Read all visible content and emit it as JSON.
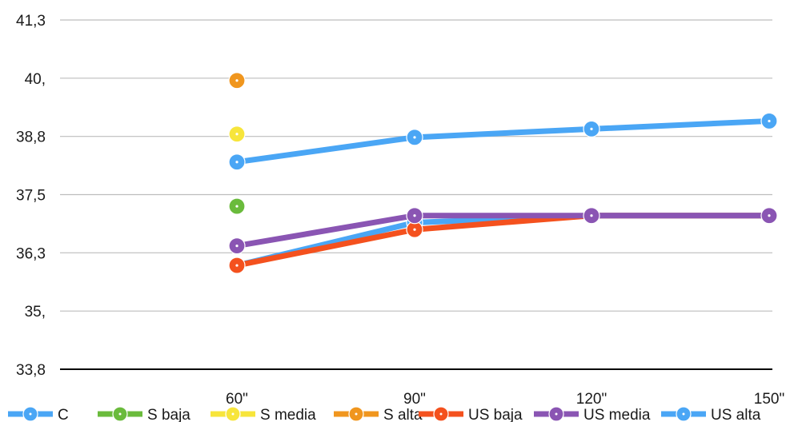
{
  "chart_data": {
    "type": "line",
    "categories": [
      "60\"",
      "90\"",
      "120\"",
      "150\""
    ],
    "yticks": [
      "33,8",
      "35,",
      "36,3",
      "37,5",
      "38,8",
      "40,",
      "41,3"
    ],
    "ylim": [
      33.8,
      41.3
    ],
    "grid": true,
    "legend_position": "bottom",
    "series": [
      {
        "name": "C",
        "color": "#4aa6f5",
        "values": [
          36.03,
          36.95,
          37.1,
          37.1
        ]
      },
      {
        "name": "S baja",
        "color": "#6abb3c",
        "values": [
          37.3,
          null,
          null,
          null
        ]
      },
      {
        "name": "S media",
        "color": "#f7e53b",
        "values": [
          38.85,
          null,
          null,
          null
        ]
      },
      {
        "name": "S alta",
        "color": "#f0961e",
        "values": [
          40.0,
          null,
          null,
          null
        ]
      },
      {
        "name": "US baja",
        "color": "#f4511e",
        "values": [
          36.03,
          36.8,
          37.1,
          37.1
        ]
      },
      {
        "name": "US media",
        "color": "#8a55b3",
        "values": [
          36.45,
          37.1,
          37.1,
          37.1
        ]
      },
      {
        "name": "US alta",
        "color": "#4aa6f5",
        "values": [
          38.25,
          38.78,
          38.96,
          39.13
        ]
      }
    ]
  }
}
